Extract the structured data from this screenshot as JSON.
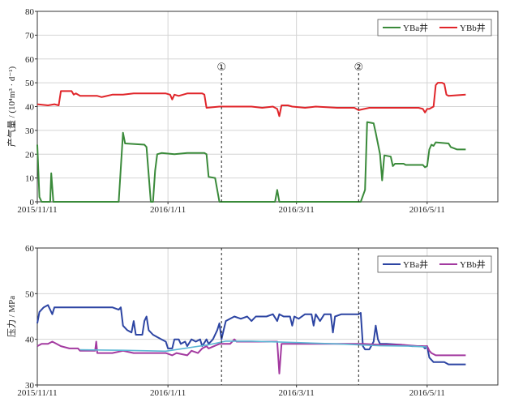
{
  "chart_data": [
    {
      "type": "line",
      "ylabel": "产气量 / (10⁴m³ · d⁻¹)",
      "ylim": [
        0,
        80
      ],
      "yticks": [
        0,
        10,
        20,
        30,
        40,
        50,
        60,
        70,
        80
      ],
      "xlim": [
        0,
        215
      ],
      "xticks": [
        {
          "x": 0,
          "label": "2015/11/11"
        },
        {
          "x": 61,
          "label": "2016/1/11"
        },
        {
          "x": 121,
          "label": "2016/3/11"
        },
        {
          "x": 182,
          "label": "2016/5/11"
        }
      ],
      "grid": true,
      "legend": "top-right",
      "markers": [
        {
          "x": 86,
          "label": "①"
        },
        {
          "x": 150,
          "label": "②"
        }
      ],
      "series": [
        {
          "name": "YBa井",
          "color": "#3a8a3a",
          "points": [
            [
              0,
              24
            ],
            [
              1,
              2
            ],
            [
              2,
              0
            ],
            [
              6,
              0
            ],
            [
              6.5,
              12
            ],
            [
              7.5,
              0
            ],
            [
              38,
              0
            ],
            [
              40,
              29
            ],
            [
              41,
              24.5
            ],
            [
              50,
              24
            ],
            [
              51,
              23
            ],
            [
              53,
              0
            ],
            [
              54,
              0
            ],
            [
              55,
              13
            ],
            [
              56,
              20
            ],
            [
              58,
              20.5
            ],
            [
              64,
              20
            ],
            [
              70,
              20.5
            ],
            [
              78,
              20.5
            ],
            [
              79,
              20
            ],
            [
              80,
              10.5
            ],
            [
              83,
              10
            ],
            [
              85,
              0
            ],
            [
              111,
              0
            ],
            [
              112,
              5
            ],
            [
              113,
              0
            ],
            [
              151,
              0
            ],
            [
              153,
              5
            ],
            [
              154,
              33.5
            ],
            [
              157,
              33
            ],
            [
              158,
              29
            ],
            [
              160,
              20
            ],
            [
              161,
              9
            ],
            [
              162,
              19.5
            ],
            [
              165,
              19
            ],
            [
              166,
              15
            ],
            [
              167,
              16
            ],
            [
              171,
              16
            ],
            [
              172,
              15.5
            ],
            [
              180,
              15.5
            ],
            [
              181,
              14.5
            ],
            [
              182,
              15
            ],
            [
              183,
              22
            ],
            [
              184,
              24
            ],
            [
              185,
              23.5
            ],
            [
              186,
              25
            ],
            [
              192,
              24.5
            ],
            [
              193,
              23
            ],
            [
              196,
              22
            ],
            [
              200,
              22
            ]
          ]
        },
        {
          "name": "YBb井",
          "color": "#e0252a",
          "points": [
            [
              0,
              41
            ],
            [
              5,
              40.5
            ],
            [
              8,
              41
            ],
            [
              10,
              40.5
            ],
            [
              11,
              46.5
            ],
            [
              12,
              46.5
            ],
            [
              16,
              46.5
            ],
            [
              17,
              45
            ],
            [
              18,
              45.5
            ],
            [
              20,
              44.5
            ],
            [
              28,
              44.5
            ],
            [
              30,
              44
            ],
            [
              35,
              45
            ],
            [
              40,
              45
            ],
            [
              45,
              45.5
            ],
            [
              50,
              45.5
            ],
            [
              55,
              45.5
            ],
            [
              60,
              45.5
            ],
            [
              62,
              45
            ],
            [
              63,
              43
            ],
            [
              64,
              45
            ],
            [
              66,
              44.5
            ],
            [
              70,
              45.5
            ],
            [
              77,
              45.5
            ],
            [
              78,
              45
            ],
            [
              79,
              39.5
            ],
            [
              85,
              40
            ],
            [
              90,
              40
            ],
            [
              100,
              40
            ],
            [
              105,
              39.5
            ],
            [
              110,
              40
            ],
            [
              112,
              39
            ],
            [
              113,
              36
            ],
            [
              114,
              40.5
            ],
            [
              117,
              40.5
            ],
            [
              119,
              40
            ],
            [
              125,
              39.5
            ],
            [
              130,
              40
            ],
            [
              140,
              39.5
            ],
            [
              148,
              39.5
            ],
            [
              150,
              38.5
            ],
            [
              155,
              39.5
            ],
            [
              165,
              39.5
            ],
            [
              170,
              39.5
            ],
            [
              178,
              39.5
            ],
            [
              180,
              39
            ],
            [
              181,
              37.5
            ],
            [
              182,
              39
            ],
            [
              183,
              39
            ],
            [
              185,
              40
            ],
            [
              186,
              49
            ],
            [
              187,
              50
            ],
            [
              189,
              50
            ],
            [
              190,
              49.5
            ],
            [
              191,
              45
            ],
            [
              192,
              44.5
            ],
            [
              200,
              45
            ]
          ]
        }
      ]
    },
    {
      "type": "line",
      "ylabel": "压力 / MPa",
      "ylim": [
        30,
        60
      ],
      "yticks": [
        30,
        40,
        50,
        60
      ],
      "xlim": [
        0,
        215
      ],
      "xticks": [
        {
          "x": 0,
          "label": "2015/11/11"
        },
        {
          "x": 61,
          "label": "2016/1/11"
        },
        {
          "x": 121,
          "label": "2016/3/11"
        },
        {
          "x": 182,
          "label": "2016/5/11"
        }
      ],
      "grid": true,
      "legend": "top-right",
      "markers": [
        {
          "x": 86,
          "label": ""
        },
        {
          "x": 150,
          "label": ""
        }
      ],
      "series": [
        {
          "name": "YBa井",
          "color": "#2d45a3",
          "points": [
            [
              0,
              43.5
            ],
            [
              1,
              46
            ],
            [
              3,
              47
            ],
            [
              5,
              47.5
            ],
            [
              7,
              45.5
            ],
            [
              8,
              47
            ],
            [
              12,
              47
            ],
            [
              20,
              47
            ],
            [
              35,
              47
            ],
            [
              38,
              46.5
            ],
            [
              39,
              47
            ],
            [
              40,
              43
            ],
            [
              42,
              42
            ],
            [
              44,
              41.5
            ],
            [
              45,
              44
            ],
            [
              46,
              41
            ],
            [
              49,
              41
            ],
            [
              50,
              44
            ],
            [
              51,
              45
            ],
            [
              52,
              42
            ],
            [
              54,
              41
            ],
            [
              56,
              40.5
            ],
            [
              58,
              40
            ],
            [
              60,
              39.5
            ],
            [
              61,
              38
            ],
            [
              63,
              38
            ],
            [
              64,
              40
            ],
            [
              66,
              40
            ],
            [
              67,
              39
            ],
            [
              69,
              39.5
            ],
            [
              70,
              38.5
            ],
            [
              72,
              40
            ],
            [
              74,
              39.5
            ],
            [
              76,
              40
            ],
            [
              77,
              38.5
            ],
            [
              79,
              40
            ],
            [
              80,
              39
            ],
            [
              82,
              40
            ],
            [
              84,
              42
            ],
            [
              85,
              43.5
            ],
            [
              86,
              40
            ],
            [
              87,
              42
            ],
            [
              88,
              44
            ],
            [
              90,
              44.5
            ],
            [
              92,
              45
            ],
            [
              95,
              44.5
            ],
            [
              98,
              45
            ],
            [
              100,
              44
            ],
            [
              102,
              45
            ],
            [
              107,
              45
            ],
            [
              110,
              45.5
            ],
            [
              112,
              44
            ],
            [
              113,
              45.5
            ],
            [
              115,
              45
            ],
            [
              118,
              45
            ],
            [
              119,
              43
            ],
            [
              120,
              45
            ],
            [
              122,
              44.5
            ],
            [
              125,
              45.5
            ],
            [
              128,
              45.5
            ],
            [
              129,
              43
            ],
            [
              130,
              45.5
            ],
            [
              132,
              44
            ],
            [
              134,
              45.5
            ],
            [
              137,
              45.5
            ],
            [
              138,
              41.5
            ],
            [
              139,
              45
            ],
            [
              142,
              45.5
            ],
            [
              145,
              45.5
            ],
            [
              150,
              45.5
            ],
            [
              151,
              45.8
            ],
            [
              152,
              38.5
            ],
            [
              153,
              37.8
            ],
            [
              155,
              37.8
            ],
            [
              157,
              39.5
            ],
            [
              158,
              43
            ],
            [
              159,
              40
            ],
            [
              160,
              39
            ],
            [
              163,
              39
            ],
            [
              170,
              38.8
            ],
            [
              175,
              38.5
            ],
            [
              180,
              38.5
            ],
            [
              181,
              38
            ],
            [
              182,
              38.5
            ],
            [
              183,
              36
            ],
            [
              185,
              35
            ],
            [
              190,
              35
            ],
            [
              192,
              34.5
            ],
            [
              196,
              34.5
            ],
            [
              200,
              34.5
            ]
          ]
        },
        {
          "name": "YBb井",
          "color": "#a33aa0",
          "points": [
            [
              0,
              38.5
            ],
            [
              2,
              39
            ],
            [
              5,
              39
            ],
            [
              7,
              39.5
            ],
            [
              9,
              39
            ],
            [
              11,
              38.5
            ],
            [
              15,
              38
            ],
            [
              19,
              38
            ],
            [
              20,
              37.5
            ],
            [
              27,
              37.5
            ],
            [
              27.5,
              39.5
            ],
            [
              28,
              37
            ],
            [
              35,
              37
            ],
            [
              40,
              37.5
            ],
            [
              45,
              37
            ],
            [
              50,
              37
            ],
            [
              55,
              37
            ],
            [
              60,
              37
            ],
            [
              63,
              36.5
            ],
            [
              65,
              37
            ],
            [
              70,
              36.5
            ],
            [
              72,
              37.5
            ],
            [
              75,
              37
            ],
            [
              77,
              38
            ],
            [
              79,
              38.5
            ],
            [
              80,
              38
            ],
            [
              85,
              39
            ],
            [
              90,
              39
            ],
            [
              92,
              40
            ],
            [
              93,
              39.5
            ],
            [
              100,
              39.5
            ],
            [
              112,
              39.5
            ],
            [
              113,
              32.5
            ],
            [
              114,
              39
            ],
            [
              120,
              39
            ],
            [
              130,
              39
            ],
            [
              140,
              39
            ],
            [
              150,
              39
            ],
            [
              152,
              39
            ],
            [
              160,
              38.8
            ],
            [
              170,
              38.8
            ],
            [
              178,
              38.5
            ],
            [
              182,
              38.5
            ],
            [
              183,
              37.5
            ],
            [
              184,
              37
            ],
            [
              186,
              36.5
            ],
            [
              190,
              36.5
            ],
            [
              195,
              36.5
            ],
            [
              200,
              36.5
            ]
          ]
        },
        {
          "name": "",
          "color": "#5bb7d4",
          "points": [
            [
              20,
              37.7
            ],
            [
              40,
              37.6
            ],
            [
              60,
              37.4
            ],
            [
              80,
              38.8
            ],
            [
              84,
              39.2
            ],
            [
              88,
              39.6
            ],
            [
              100,
              39.6
            ],
            [
              120,
              39.3
            ],
            [
              140,
              39
            ],
            [
              160,
              38.6
            ],
            [
              175,
              38.5
            ],
            [
              182,
              38.3
            ]
          ]
        }
      ]
    }
  ]
}
